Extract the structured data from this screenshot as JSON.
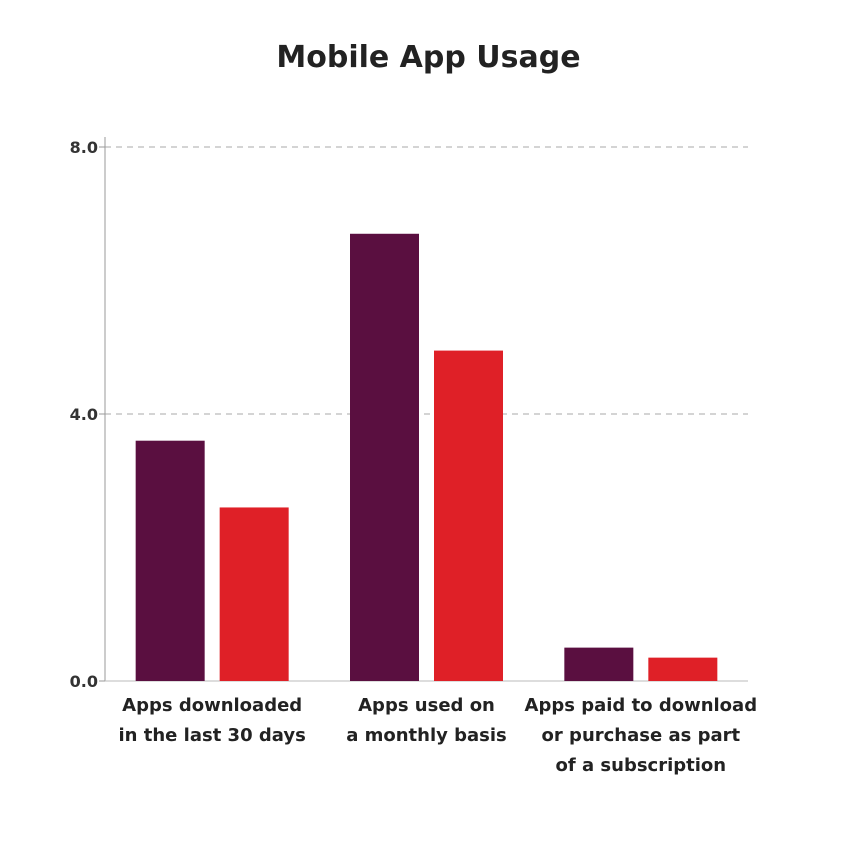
{
  "chart_data": {
    "type": "bar",
    "title": "Mobile App Usage",
    "xlabel": "",
    "ylabel": "",
    "ylim": [
      0,
      8
    ],
    "yticks": [
      "0.0",
      "4.0",
      "8.0"
    ],
    "ytick_values": [
      0,
      4,
      8
    ],
    "grid": "horizontal dashed",
    "categories": [
      [
        "Apps downloaded",
        "in the last 30 days"
      ],
      [
        "Apps  used on",
        "a monthly basis"
      ],
      [
        "Apps paid to download",
        "or purchase as part",
        "of a subscription"
      ]
    ],
    "series": [
      {
        "values": [
          3.6,
          6.7,
          0.5
        ],
        "color": "#5a0f40"
      },
      {
        "values": [
          2.6,
          4.95,
          0.35
        ],
        "color": "#df2027"
      }
    ]
  }
}
